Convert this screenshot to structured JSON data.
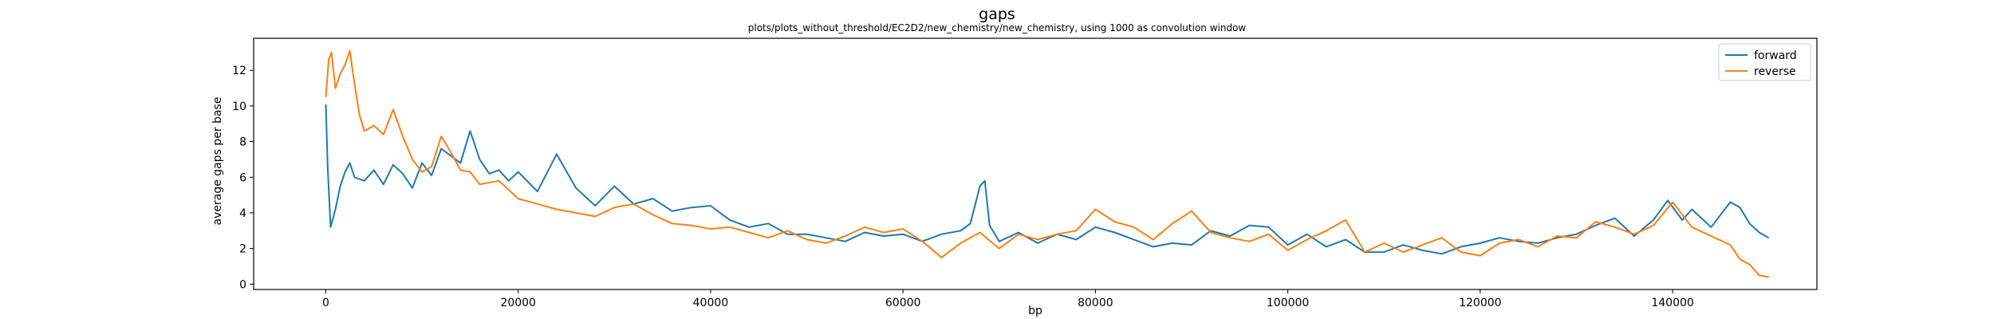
{
  "chart_data": {
    "type": "line",
    "title": "gaps",
    "subtitle": "plots/plots_without_threshold/EC2D2/new_chemistry/new_chemistry, using 1000 as convolution window",
    "xlabel": "bp",
    "ylabel": "average gaps per base",
    "xlim": [
      -7500,
      155000
    ],
    "ylim": [
      -0.3,
      13.8
    ],
    "xticks": [
      0,
      20000,
      40000,
      60000,
      80000,
      100000,
      120000,
      140000
    ],
    "xtick_labels": [
      "0",
      "20000",
      "40000",
      "60000",
      "80000",
      "100000",
      "120000",
      "140000"
    ],
    "yticks": [
      0,
      2,
      4,
      6,
      8,
      10,
      12
    ],
    "ytick_labels": [
      "0",
      "2",
      "4",
      "6",
      "8",
      "10",
      "12"
    ],
    "grid": false,
    "legend_position": "top-right",
    "series": [
      {
        "name": "forward",
        "color": "#1f77b4",
        "x": [
          0,
          200,
          500,
          1000,
          1500,
          2000,
          2500,
          3000,
          4000,
          5000,
          6000,
          7000,
          8000,
          9000,
          10000,
          11000,
          12000,
          13000,
          14000,
          15000,
          16000,
          17000,
          18000,
          19000,
          20000,
          22000,
          24000,
          26000,
          28000,
          30000,
          32000,
          34000,
          36000,
          38000,
          40000,
          42000,
          44000,
          46000,
          48000,
          50000,
          52000,
          54000,
          56000,
          58000,
          60000,
          62000,
          64000,
          66000,
          67000,
          68000,
          68500,
          69000,
          70000,
          72000,
          74000,
          76000,
          78000,
          80000,
          82000,
          84000,
          86000,
          88000,
          90000,
          92000,
          94000,
          96000,
          98000,
          100000,
          102000,
          104000,
          106000,
          108000,
          110000,
          112000,
          114000,
          116000,
          118000,
          120000,
          122000,
          124000,
          126000,
          128000,
          130000,
          132000,
          134000,
          136000,
          138000,
          139500,
          141000,
          142000,
          144000,
          146000,
          147000,
          148000,
          149000,
          150000
        ],
        "y": [
          10.1,
          6.5,
          3.2,
          4.2,
          5.5,
          6.3,
          6.8,
          6.0,
          5.8,
          6.4,
          5.6,
          6.7,
          6.2,
          5.4,
          6.8,
          6.1,
          7.6,
          7.2,
          6.8,
          8.6,
          7.0,
          6.2,
          6.4,
          5.8,
          6.3,
          5.2,
          7.3,
          5.4,
          4.4,
          5.5,
          4.5,
          4.8,
          4.1,
          4.3,
          4.4,
          3.6,
          3.2,
          3.4,
          2.8,
          2.8,
          2.6,
          2.4,
          2.9,
          2.7,
          2.8,
          2.4,
          2.8,
          3.0,
          3.4,
          5.5,
          5.8,
          3.3,
          2.4,
          2.9,
          2.3,
          2.8,
          2.5,
          3.2,
          2.9,
          2.5,
          2.1,
          2.3,
          2.2,
          3.0,
          2.7,
          3.3,
          3.2,
          2.2,
          2.8,
          2.1,
          2.5,
          1.8,
          1.8,
          2.2,
          1.9,
          1.7,
          2.1,
          2.3,
          2.6,
          2.4,
          2.3,
          2.6,
          2.8,
          3.3,
          3.7,
          2.7,
          3.6,
          4.7,
          3.6,
          4.2,
          3.2,
          4.6,
          4.3,
          3.4,
          2.9,
          2.6
        ]
      },
      {
        "name": "reverse",
        "color": "#ff7f0e",
        "x": [
          0,
          300,
          600,
          1000,
          1500,
          2000,
          2500,
          3000,
          3500,
          4000,
          5000,
          6000,
          7000,
          8000,
          9000,
          10000,
          11000,
          12000,
          13000,
          14000,
          15000,
          16000,
          18000,
          20000,
          22000,
          24000,
          26000,
          28000,
          30000,
          32000,
          34000,
          36000,
          38000,
          40000,
          42000,
          44000,
          46000,
          48000,
          50000,
          52000,
          54000,
          56000,
          58000,
          60000,
          62000,
          64000,
          66000,
          68000,
          70000,
          72000,
          74000,
          76000,
          78000,
          80000,
          82000,
          84000,
          86000,
          88000,
          90000,
          92000,
          94000,
          96000,
          98000,
          100000,
          102000,
          104000,
          106000,
          108000,
          110000,
          112000,
          114000,
          116000,
          118000,
          120000,
          122000,
          124000,
          126000,
          128000,
          130000,
          132000,
          134000,
          136000,
          138000,
          140000,
          142000,
          144000,
          146000,
          147000,
          148000,
          149000,
          150000
        ],
        "y": [
          10.5,
          12.6,
          13.0,
          11.0,
          11.8,
          12.3,
          13.1,
          11.2,
          9.5,
          8.6,
          8.9,
          8.4,
          9.8,
          8.3,
          7.0,
          6.3,
          6.6,
          8.3,
          7.4,
          6.4,
          6.3,
          5.6,
          5.8,
          4.8,
          4.5,
          4.2,
          4.0,
          3.8,
          4.3,
          4.5,
          3.9,
          3.4,
          3.3,
          3.1,
          3.2,
          2.9,
          2.6,
          3.0,
          2.5,
          2.3,
          2.7,
          3.2,
          2.9,
          3.1,
          2.4,
          1.5,
          2.3,
          2.9,
          2.0,
          2.8,
          2.5,
          2.8,
          3.0,
          4.2,
          3.5,
          3.2,
          2.5,
          3.4,
          4.1,
          2.9,
          2.6,
          2.4,
          2.8,
          1.9,
          2.5,
          3.0,
          3.6,
          1.8,
          2.3,
          1.8,
          2.2,
          2.6,
          1.8,
          1.6,
          2.3,
          2.5,
          2.1,
          2.7,
          2.6,
          3.5,
          3.2,
          2.8,
          3.3,
          4.6,
          3.2,
          2.7,
          2.2,
          1.4,
          1.1,
          0.5,
          0.4
        ]
      }
    ]
  }
}
